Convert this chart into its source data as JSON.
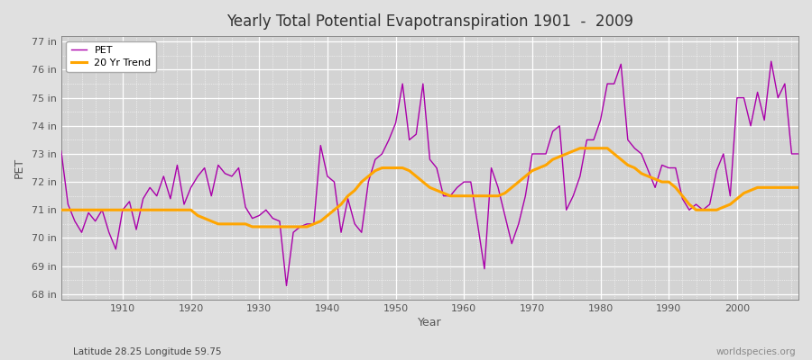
{
  "title": "Yearly Total Potential Evapotranspiration 1901  -  2009",
  "xlabel": "Year",
  "ylabel": "PET",
  "subtitle": "Latitude 28.25 Longitude 59.75",
  "watermark": "worldspecies.org",
  "pet_color": "#AA00AA",
  "trend_color": "#FFA500",
  "background_color": "#E0E0E0",
  "plot_bg_color": "#D3D3D3",
  "grid_color": "#FFFFFF",
  "ylim": [
    67.8,
    77.2
  ],
  "yticks": [
    68,
    69,
    70,
    71,
    72,
    73,
    74,
    75,
    76,
    77
  ],
  "ytick_labels": [
    "68 in",
    "69 in",
    "70 in",
    "71 in",
    "72 in",
    "73 in",
    "74 in",
    "75 in",
    "76 in",
    "77 in"
  ],
  "years": [
    1901,
    1902,
    1903,
    1904,
    1905,
    1906,
    1907,
    1908,
    1909,
    1910,
    1911,
    1912,
    1913,
    1914,
    1915,
    1916,
    1917,
    1918,
    1919,
    1920,
    1921,
    1922,
    1923,
    1924,
    1925,
    1926,
    1927,
    1928,
    1929,
    1930,
    1931,
    1932,
    1933,
    1934,
    1935,
    1936,
    1937,
    1938,
    1939,
    1940,
    1941,
    1942,
    1943,
    1944,
    1945,
    1946,
    1947,
    1948,
    1949,
    1950,
    1951,
    1952,
    1953,
    1954,
    1955,
    1956,
    1957,
    1958,
    1959,
    1960,
    1961,
    1962,
    1963,
    1964,
    1965,
    1966,
    1967,
    1968,
    1969,
    1970,
    1971,
    1972,
    1973,
    1974,
    1975,
    1976,
    1977,
    1978,
    1979,
    1980,
    1981,
    1982,
    1983,
    1984,
    1985,
    1986,
    1987,
    1988,
    1989,
    1990,
    1991,
    1992,
    1993,
    1994,
    1995,
    1996,
    1997,
    1998,
    1999,
    2000,
    2001,
    2002,
    2003,
    2004,
    2005,
    2006,
    2007,
    2008,
    2009
  ],
  "pet": [
    73.1,
    71.2,
    70.6,
    70.2,
    70.9,
    70.6,
    71.0,
    70.2,
    69.6,
    71.0,
    71.3,
    70.3,
    71.4,
    71.8,
    71.5,
    72.2,
    71.4,
    72.6,
    71.2,
    71.8,
    72.2,
    72.5,
    71.5,
    72.6,
    72.3,
    72.2,
    72.5,
    71.1,
    70.7,
    70.8,
    71.0,
    70.7,
    70.6,
    68.3,
    70.2,
    70.4,
    70.5,
    70.5,
    73.3,
    72.2,
    72.0,
    70.2,
    71.4,
    70.5,
    70.2,
    72.0,
    72.8,
    73.0,
    73.5,
    74.1,
    75.5,
    73.5,
    73.7,
    75.5,
    72.8,
    72.5,
    71.5,
    71.5,
    71.8,
    72.0,
    72.0,
    70.5,
    68.9,
    72.5,
    71.8,
    70.8,
    69.8,
    70.5,
    71.5,
    73.0,
    73.0,
    73.0,
    73.8,
    74.0,
    71.0,
    71.5,
    72.2,
    73.5,
    73.5,
    74.2,
    75.5,
    75.5,
    76.2,
    73.5,
    73.2,
    73.0,
    72.4,
    71.8,
    72.6,
    72.5,
    72.5,
    71.4,
    71.0,
    71.2,
    71.0,
    71.2,
    72.4,
    73.0,
    71.5,
    75.0,
    75.0,
    74.0,
    75.2,
    74.2,
    76.3,
    75.0,
    75.5,
    73.0,
    73.0
  ],
  "trend": [
    71.0,
    71.0,
    71.0,
    71.0,
    71.0,
    71.0,
    71.0,
    71.0,
    71.0,
    71.0,
    71.0,
    71.0,
    71.0,
    71.0,
    71.0,
    71.0,
    71.0,
    71.0,
    71.0,
    71.0,
    70.8,
    70.7,
    70.6,
    70.5,
    70.5,
    70.5,
    70.5,
    70.5,
    70.4,
    70.4,
    70.4,
    70.4,
    70.4,
    70.4,
    70.4,
    70.4,
    70.4,
    70.5,
    70.6,
    70.8,
    71.0,
    71.2,
    71.5,
    71.7,
    72.0,
    72.2,
    72.4,
    72.5,
    72.5,
    72.5,
    72.5,
    72.4,
    72.2,
    72.0,
    71.8,
    71.7,
    71.6,
    71.5,
    71.5,
    71.5,
    71.5,
    71.5,
    71.5,
    71.5,
    71.5,
    71.6,
    71.8,
    72.0,
    72.2,
    72.4,
    72.5,
    72.6,
    72.8,
    72.9,
    73.0,
    73.1,
    73.2,
    73.2,
    73.2,
    73.2,
    73.2,
    73.0,
    72.8,
    72.6,
    72.5,
    72.3,
    72.2,
    72.1,
    72.0,
    72.0,
    71.8,
    71.5,
    71.2,
    71.0,
    71.0,
    71.0,
    71.0,
    71.1,
    71.2,
    71.4,
    71.6,
    71.7,
    71.8,
    71.8,
    71.8,
    71.8,
    71.8,
    71.8,
    71.8
  ]
}
